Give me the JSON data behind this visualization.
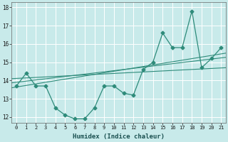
{
  "xlabel": "Humidex (Indice chaleur)",
  "x_values": [
    0,
    1,
    2,
    3,
    4,
    5,
    6,
    7,
    8,
    9,
    10,
    11,
    12,
    13,
    14,
    15,
    16,
    17,
    18,
    19,
    20,
    21
  ],
  "y_main": [
    13.7,
    14.4,
    13.7,
    13.7,
    12.5,
    12.1,
    11.9,
    11.9,
    12.5,
    13.7,
    13.7,
    13.3,
    13.2,
    14.6,
    15.0,
    16.6,
    15.8,
    15.8,
    17.8,
    14.7,
    15.2,
    15.8
  ],
  "ylim": [
    11.7,
    18.3
  ],
  "xlim": [
    -0.5,
    21.5
  ],
  "yticks": [
    12,
    13,
    14,
    15,
    16,
    17,
    18
  ],
  "xticks": [
    0,
    1,
    2,
    3,
    4,
    5,
    6,
    7,
    8,
    9,
    10,
    11,
    12,
    13,
    14,
    15,
    16,
    17,
    18,
    19,
    20,
    21
  ],
  "line_color": "#2e8b7a",
  "bg_color": "#c8eaea",
  "grid_color": "#b0dede",
  "trend_color": "#2e8b7a",
  "marker": "D",
  "marker_size": 2.5,
  "trend_lines": [
    [
      13.87,
      15.27
    ],
    [
      13.6,
      15.5
    ],
    [
      14.1,
      14.7
    ]
  ]
}
